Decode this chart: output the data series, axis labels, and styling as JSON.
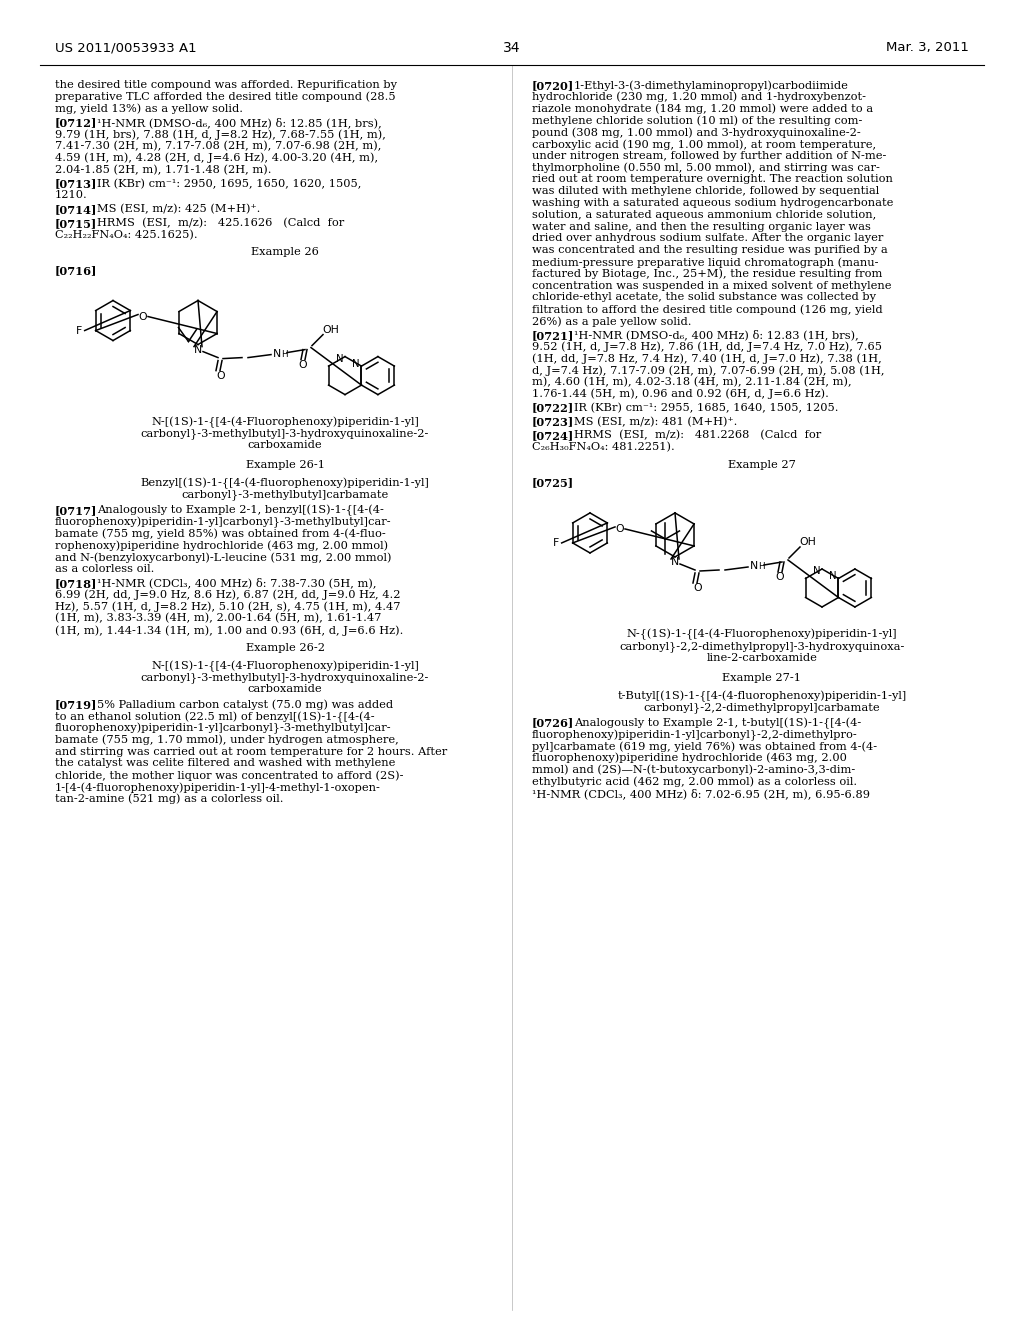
{
  "page_number": "34",
  "header_left": "US 2011/0053933 A1",
  "header_right": "Mar. 3, 2011",
  "background_color": "#ffffff",
  "text_color": "#000000"
}
